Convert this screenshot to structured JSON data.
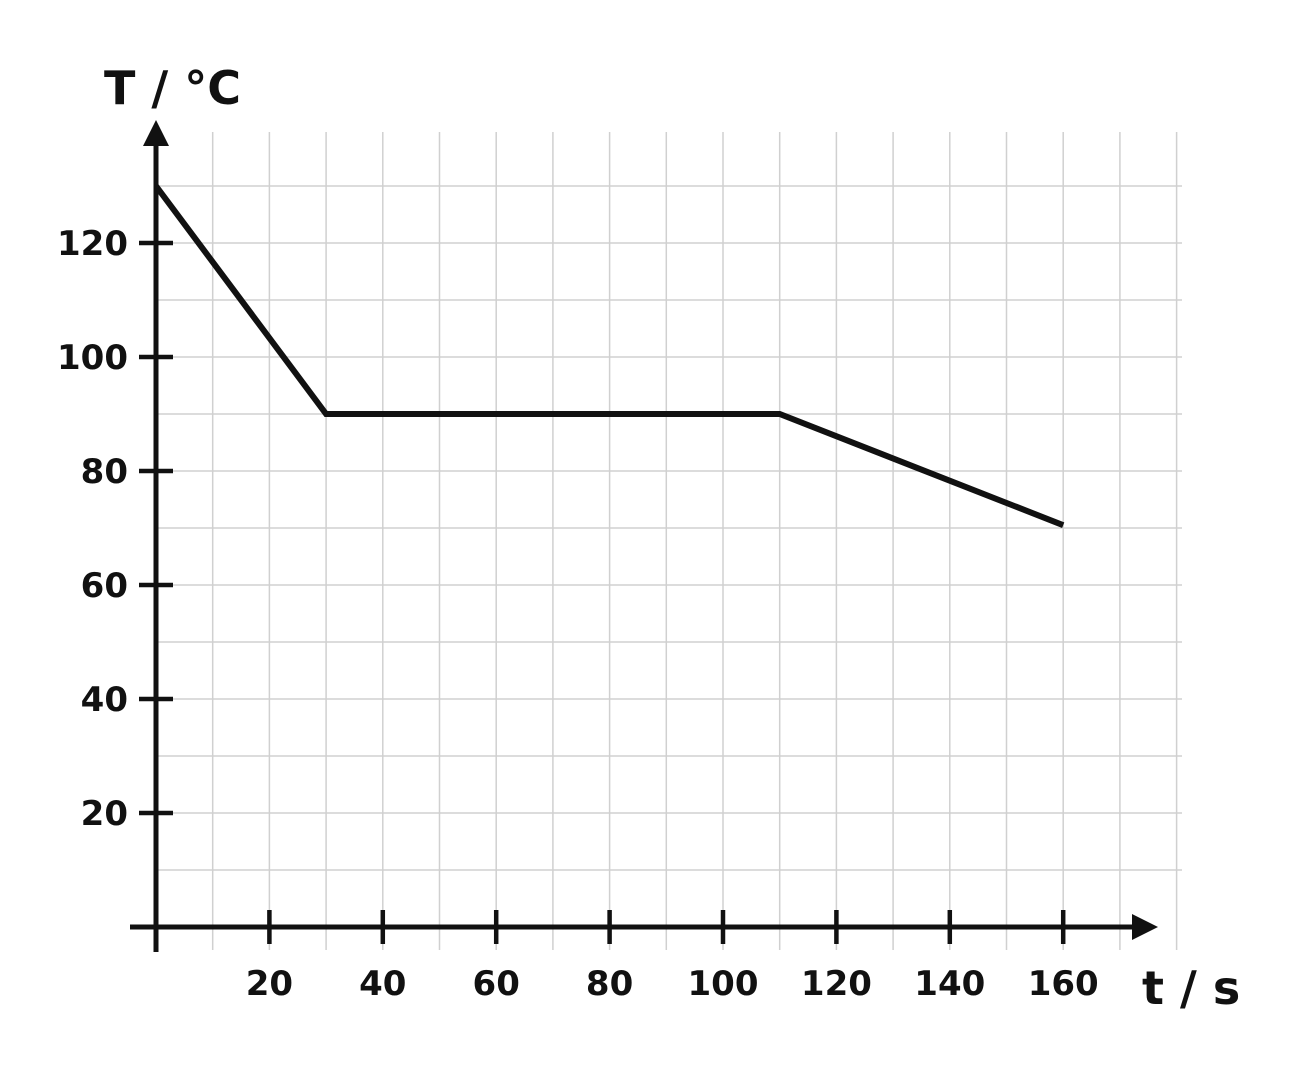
{
  "chart_data": {
    "type": "line",
    "title": "",
    "xlabel": "t / s",
    "ylabel": "T / °C",
    "xlim": [
      0,
      180
    ],
    "ylim": [
      0,
      140
    ],
    "x_ticks": [
      20,
      40,
      60,
      80,
      100,
      120,
      140,
      160
    ],
    "y_ticks": [
      20,
      40,
      60,
      80,
      100,
      120
    ],
    "grid": true,
    "grid_step_x": 10,
    "grid_step_y": 10,
    "series": [
      {
        "x": [
          0,
          30,
          110,
          160
        ],
        "y": [
          130,
          90,
          90,
          70.5
        ]
      }
    ],
    "colors": {
      "line": "#111111",
      "axis": "#111111",
      "grid": "#d0d0d0"
    }
  }
}
